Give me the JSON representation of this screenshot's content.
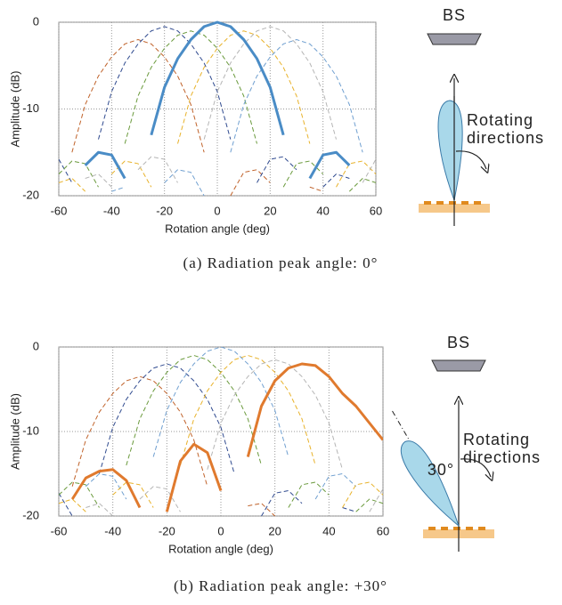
{
  "chart_data": [
    {
      "type": "line",
      "caption": "(a) Radiation peak angle: 0°",
      "x_label": "Rotation angle (deg)",
      "y_label": "Amplitude (dB)",
      "x": [
        -60,
        -55,
        -50,
        -45,
        -40,
        -35,
        -30,
        -25,
        -20,
        -15,
        -10,
        -5,
        0,
        5,
        10,
        15,
        20,
        25,
        30,
        35,
        40,
        45,
        50,
        55,
        60
      ],
      "xlim": [
        -60,
        60
      ],
      "xticks": [
        -60,
        -40,
        -20,
        0,
        20,
        40,
        60
      ],
      "ylim": [
        -20,
        0
      ],
      "yticks": [
        -20,
        -10,
        0
      ],
      "grid": true,
      "series": [
        {
          "color": "#c0622a",
          "dashed": true,
          "values": [
            null,
            -15,
            -9.5,
            -6.2,
            -4,
            -2.5,
            -2,
            -2.5,
            -4,
            -6.2,
            -9.5,
            -15,
            null,
            -20,
            -17.3,
            -17,
            -18.5,
            null,
            null,
            -19,
            -19.5,
            null,
            null,
            null,
            null
          ]
        },
        {
          "color": "#2f4a8f",
          "dashed": true,
          "values": [
            -15.8,
            -18.5,
            null,
            -13.5,
            -8,
            -4.7,
            -2.5,
            -1,
            -0.5,
            -1,
            -2.5,
            -4.7,
            -8,
            -13.5,
            null,
            -18.5,
            -15.8,
            -15.5,
            -17,
            null,
            -19,
            -17.5,
            -18,
            null,
            null
          ]
        },
        {
          "color": "#6a9a3c",
          "dashed": true,
          "values": [
            -17.5,
            -16,
            -16.3,
            -19,
            null,
            -14,
            -8.5,
            -5.2,
            -3,
            -1.5,
            -1,
            -1.5,
            -3,
            -5.2,
            -8.5,
            -14,
            null,
            -19,
            -16.3,
            -16,
            -17.5,
            null,
            -19.5,
            -18,
            -18.5
          ]
        },
        {
          "color": "#e8b22a",
          "dashed": true,
          "values": [
            -18.5,
            -18,
            -19.5,
            null,
            -17.5,
            -16,
            -16.3,
            -19,
            null,
            -14,
            -8.5,
            -5.2,
            -3,
            -1.5,
            -1,
            -1.5,
            -3,
            -5.2,
            -8.5,
            -14,
            null,
            -19,
            -16.3,
            -16,
            -17.5
          ]
        },
        {
          "color": "#b5b5b5",
          "dashed": true,
          "values": [
            null,
            null,
            -18,
            -17.5,
            -19,
            null,
            -17,
            -15.5,
            -15.8,
            -18.5,
            null,
            -13.5,
            -8,
            -4.7,
            -2.5,
            -1,
            -0.5,
            -1,
            -2.5,
            -4.7,
            -8,
            -13.5,
            null,
            -18.5,
            -15.8
          ]
        },
        {
          "color": "#6f9fd0",
          "dashed": true,
          "values": [
            null,
            null,
            null,
            null,
            -19.5,
            -19,
            null,
            null,
            -18.5,
            -17,
            -17.3,
            -20,
            null,
            -15,
            -9.5,
            -6.2,
            -4,
            -2.5,
            -2,
            -2.5,
            -4,
            -6.2,
            -9.5,
            -15,
            null
          ]
        },
        {
          "color": "#4a8cc6",
          "dashed": false,
          "values": [
            -18.5,
            null,
            -16.5,
            -15,
            -15.3,
            -18,
            null,
            -13,
            -7.5,
            -4.2,
            -2,
            -0.5,
            0,
            -0.5,
            -2,
            -4.2,
            -7.5,
            -13,
            null,
            -18,
            -15.3,
            -15,
            -16.5,
            null,
            -18.5
          ]
        }
      ],
      "diagram": {
        "bs_label": "BS",
        "rotate_label": [
          "Rotating",
          "directions"
        ],
        "angle_label": null
      }
    },
    {
      "type": "line",
      "caption": "(b) Radiation peak angle: +30°",
      "x_label": "Rotation angle (deg)",
      "y_label": "Amplitude (dB)",
      "x": [
        -60,
        -55,
        -50,
        -45,
        -40,
        -35,
        -30,
        -25,
        -20,
        -15,
        -10,
        -5,
        0,
        5,
        10,
        15,
        20,
        25,
        30,
        35,
        40,
        45,
        50,
        55,
        60
      ],
      "xlim": [
        -60,
        60
      ],
      "xticks": [
        -60,
        -40,
        -20,
        0,
        20,
        40,
        60
      ],
      "ylim": [
        -20,
        0
      ],
      "yticks": [
        -20,
        -10,
        0
      ],
      "grid": true,
      "series": [
        {
          "color": "#c0622a",
          "dashed": true,
          "values": [
            null,
            -16.5,
            -11,
            -7.7,
            -5.5,
            -4,
            -3.5,
            -4,
            -5.5,
            -7.7,
            -11,
            -16.5,
            null,
            null,
            -18.8,
            -18.5,
            -20,
            null,
            null,
            null,
            null,
            null,
            null,
            null,
            null
          ]
        },
        {
          "color": "#2f4a8f",
          "dashed": true,
          "values": [
            -17.3,
            -20,
            null,
            -15,
            -9.5,
            -6.2,
            -4,
            -2.5,
            -2,
            -2.5,
            -4,
            -6.2,
            -9.5,
            -15,
            null,
            -20,
            -17.3,
            -17,
            -18.5,
            null,
            null,
            -19,
            -19.5,
            null,
            null
          ]
        },
        {
          "color": "#6a9a3c",
          "dashed": true,
          "values": [
            -17.5,
            -16,
            -16.3,
            -19,
            null,
            -14,
            -8.5,
            -5.2,
            -3,
            -1.5,
            -1,
            -1.5,
            -3,
            -5.2,
            -8.5,
            -14,
            null,
            -19,
            -16.3,
            -16,
            -17.5,
            null,
            -19.5,
            -18,
            -18.5
          ]
        },
        {
          "color": "#6f9fd0",
          "dashed": true,
          "values": [
            -18.5,
            null,
            -16.5,
            -15,
            -15.3,
            -18,
            null,
            -13,
            -7.5,
            -4.2,
            -2,
            -0.5,
            0,
            -0.5,
            -2,
            -4.2,
            -7.5,
            -13,
            null,
            -18,
            -15.3,
            -15,
            -16.5,
            null,
            -18.5
          ]
        },
        {
          "color": "#e8b22a",
          "dashed": true,
          "values": [
            -18.5,
            -18,
            -19.5,
            null,
            -17.5,
            -16,
            -16.3,
            -19,
            null,
            -14,
            -8.5,
            -5.2,
            -3,
            -1.5,
            -1,
            -1.5,
            -3,
            -5.2,
            -8.5,
            -14,
            null,
            -19,
            -16.3,
            -16,
            -17.5
          ]
        },
        {
          "color": "#b5b5b5",
          "dashed": true,
          "values": [
            null,
            null,
            -19,
            -18.5,
            -20,
            null,
            -18,
            -16.5,
            -16.8,
            -19.5,
            null,
            -14.5,
            -9,
            -5.7,
            -3.5,
            -2,
            -1.5,
            -2,
            -3.5,
            -5.7,
            -9,
            -14.5,
            null,
            -19.5,
            -16.8
          ]
        },
        {
          "color": "#e07a2e",
          "dashed": false,
          "values": [
            null,
            -18,
            -15.5,
            -14.7,
            -14.5,
            -15.8,
            -19,
            null,
            -19.5,
            -13.5,
            -11.5,
            -12.5,
            -17,
            null,
            -13,
            -7,
            -4,
            -2.5,
            -2,
            -2.2,
            -3.5,
            -5.5,
            -7,
            -9,
            -11
          ]
        }
      ],
      "diagram": {
        "bs_label": "BS",
        "rotate_label": [
          "Rotating",
          "directions"
        ],
        "angle_label": "30°"
      }
    }
  ]
}
